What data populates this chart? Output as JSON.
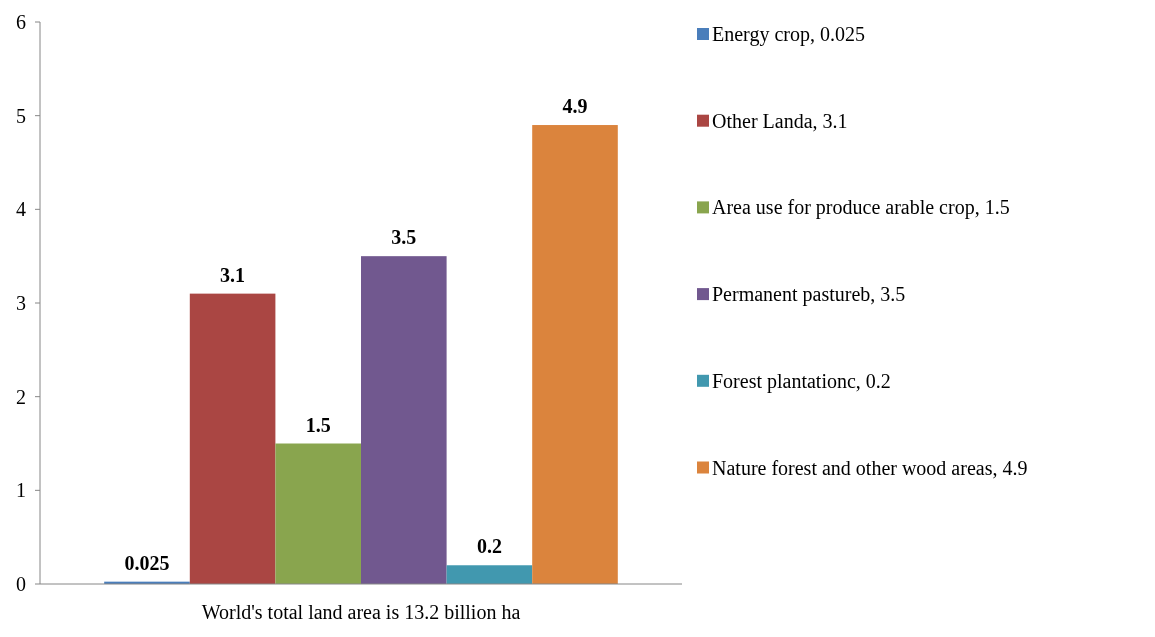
{
  "chart_data": {
    "type": "bar",
    "categories": [
      "World's total land area is 13.2 billion ha"
    ],
    "series": [
      {
        "name": "Energy crop, 0.025",
        "color": "#4a7ebb",
        "values": [
          0.025
        ]
      },
      {
        "name": "Other Landa, 3.1",
        "color": "#aa4643",
        "values": [
          3.1
        ]
      },
      {
        "name": "Area use for produce arable crop, 1.5",
        "color": "#89a54e",
        "values": [
          1.5
        ]
      },
      {
        "name": "Permanent pastureb, 3.5",
        "color": "#71588f",
        "values": [
          3.5
        ]
      },
      {
        "name": "Forest plantationc, 0.2",
        "color": "#4198af",
        "values": [
          0.2
        ]
      },
      {
        "name": "Nature forest and other wood areas, 4.9",
        "color": "#db843d",
        "values": [
          4.9
        ]
      }
    ],
    "ylim": [
      0,
      6
    ],
    "yticks": [
      0,
      1,
      2,
      3,
      4,
      5,
      6
    ],
    "data_labels": true,
    "legend": "right",
    "grid": false
  }
}
